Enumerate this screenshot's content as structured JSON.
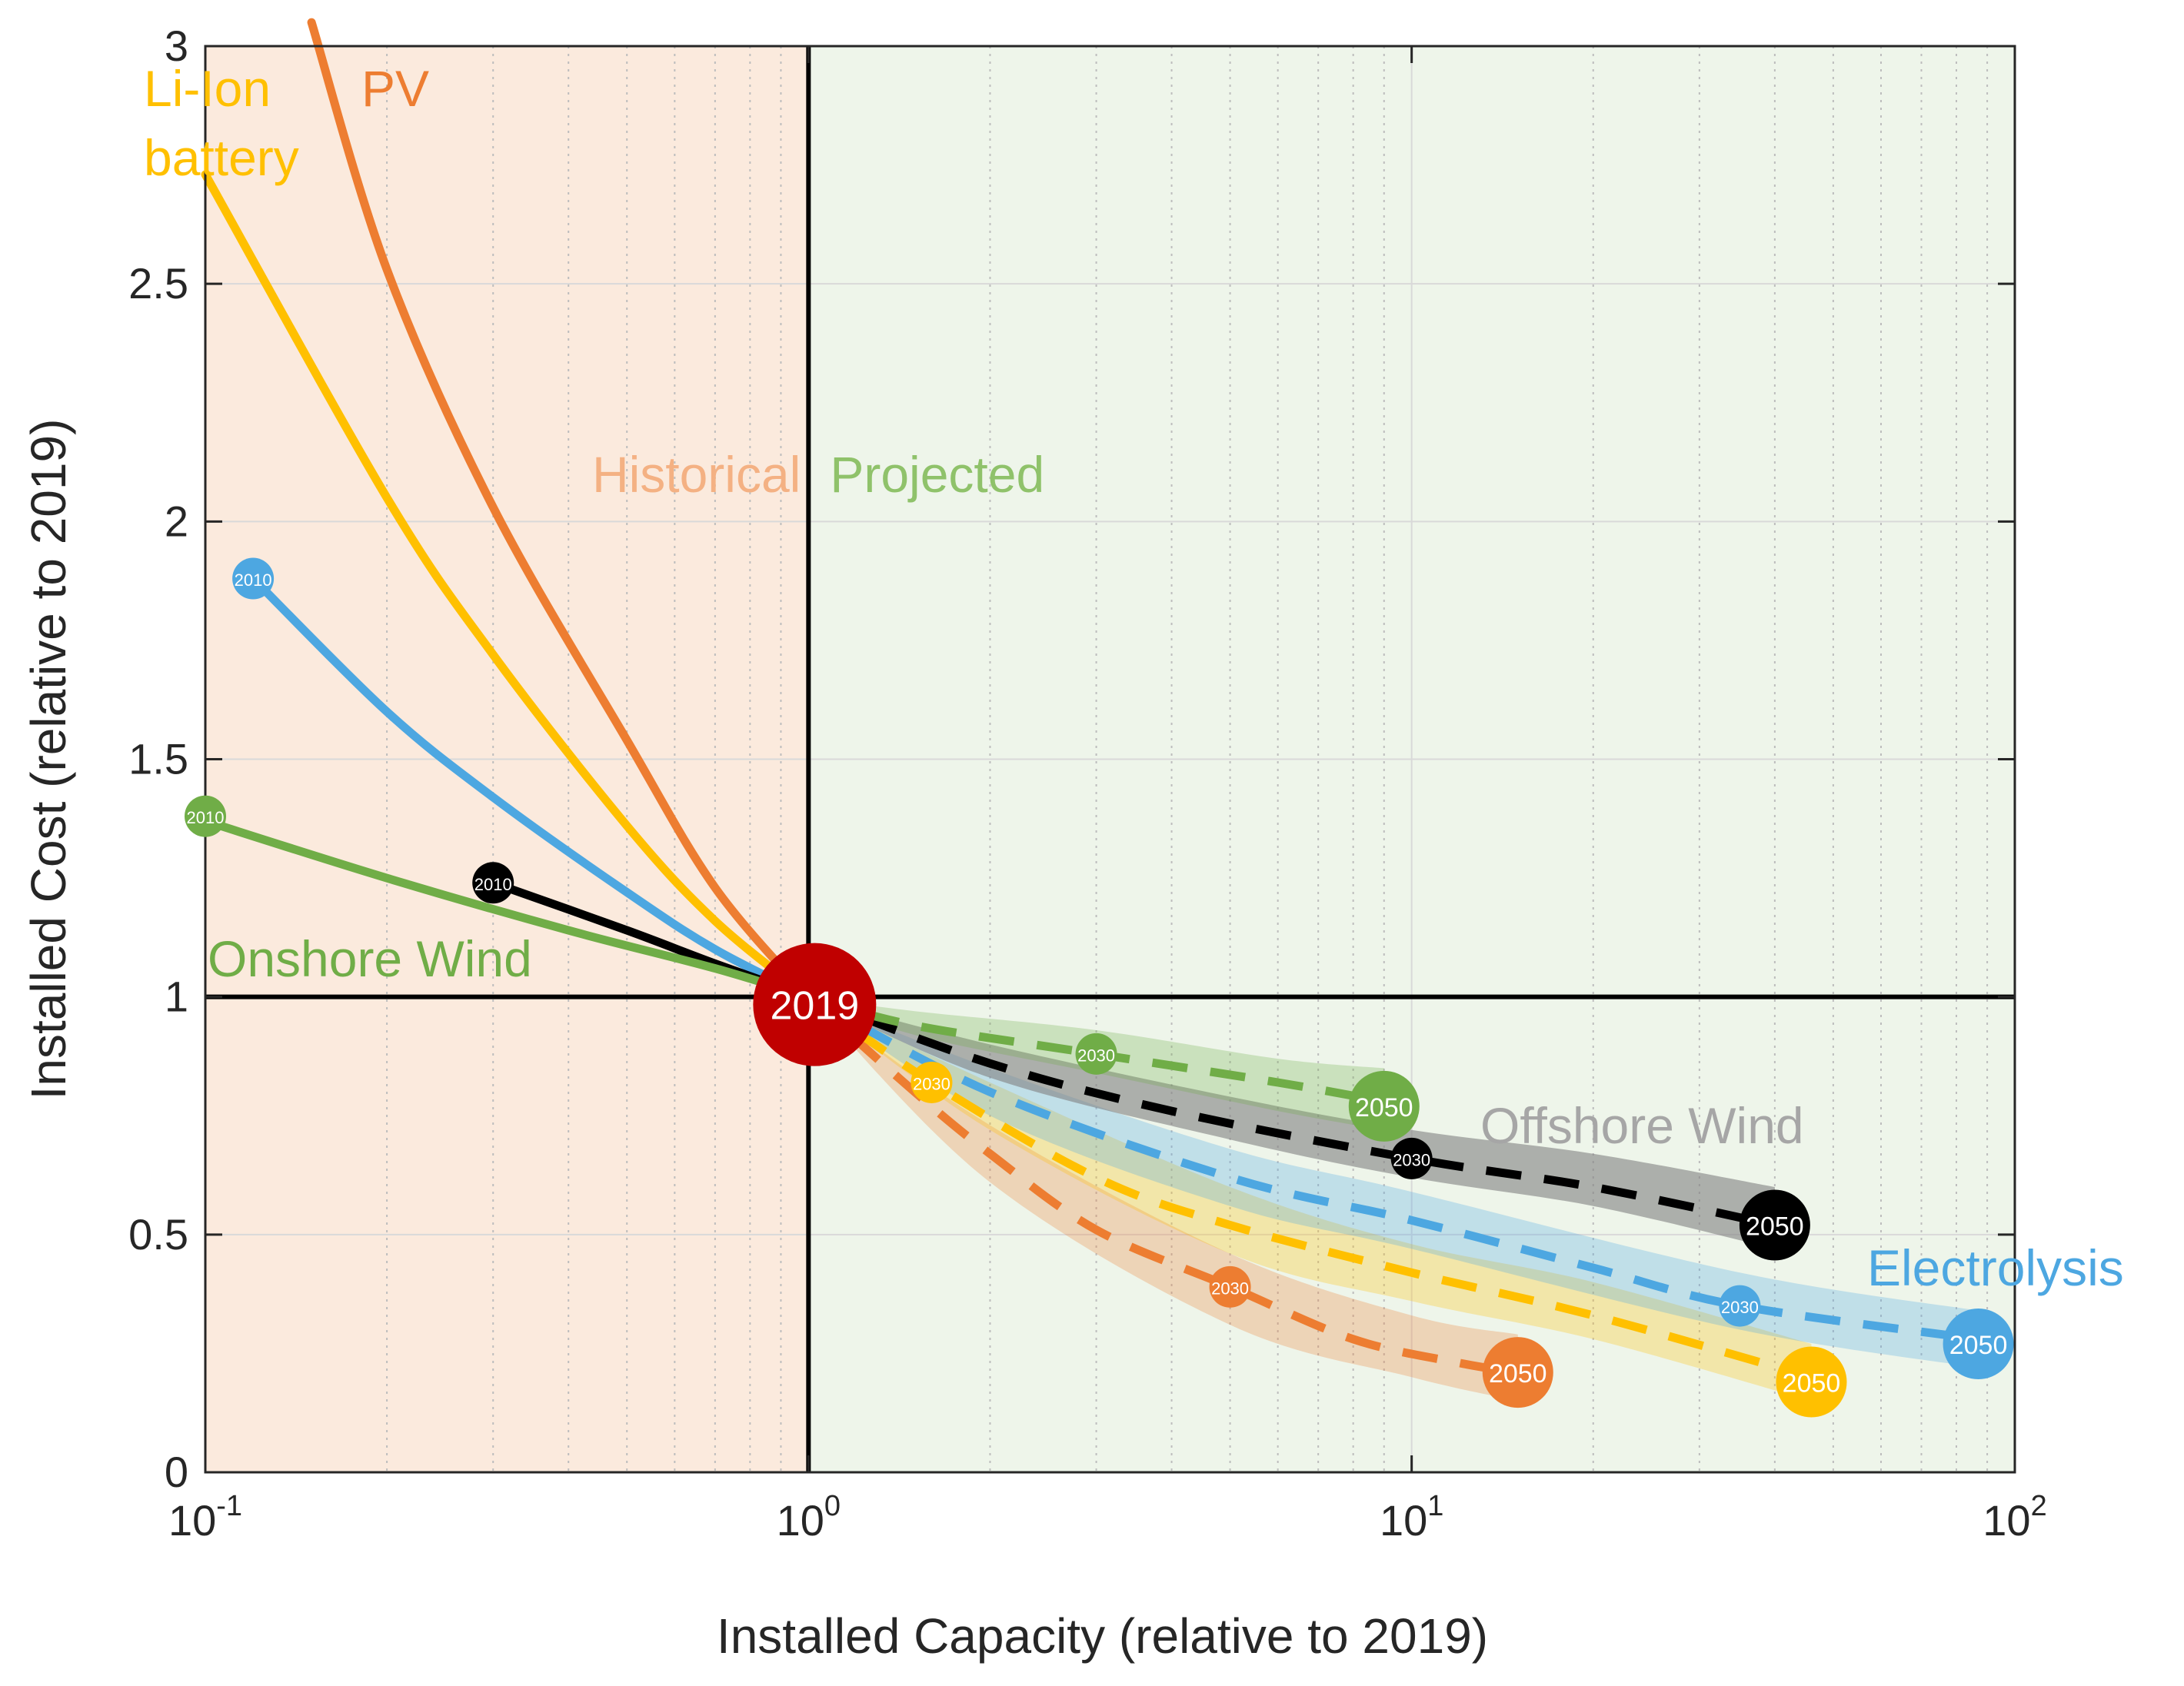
{
  "chart_data": {
    "type": "line",
    "xscale": "log",
    "xlabel": "Installed Capacity (relative to 2019)",
    "ylabel": "Installed Cost (relative to 2019)",
    "xlim": [
      0.1,
      100
    ],
    "ylim": [
      0,
      3
    ],
    "grid": true,
    "x_ticks": [
      {
        "base": "10",
        "exp": "-1",
        "value": 0.1
      },
      {
        "base": "10",
        "exp": "0",
        "value": 1
      },
      {
        "base": "10",
        "exp": "1",
        "value": 10
      },
      {
        "base": "10",
        "exp": "2",
        "value": 100
      }
    ],
    "y_ticks": [
      {
        "label": "0",
        "value": 0
      },
      {
        "label": "0.5",
        "value": 0.5
      },
      {
        "label": "1",
        "value": 1
      },
      {
        "label": "1.5",
        "value": 1.5
      },
      {
        "label": "2",
        "value": 2
      },
      {
        "label": "2.5",
        "value": 2.5
      },
      {
        "label": "3",
        "value": 3
      }
    ],
    "regions": [
      {
        "label": "Historical",
        "x_range": [
          0.1,
          1
        ],
        "color": "#fbeadd",
        "text_color": "#f4b183"
      },
      {
        "label": "Projected",
        "x_range": [
          1,
          100
        ],
        "color": "#eef5ea",
        "text_color": "#8fc26a"
      }
    ],
    "reference": {
      "x": 1,
      "y": 1,
      "label": "2019",
      "color": "#c00000"
    },
    "series": [
      {
        "name": "PV",
        "label": "PV",
        "color": "#ed7d31",
        "label_color": "#ed7d31",
        "historical": [
          [
            0.15,
            3.05
          ],
          [
            0.2,
            2.53
          ],
          [
            0.3,
            2.03
          ],
          [
            0.5,
            1.54
          ],
          [
            0.7,
            1.23
          ],
          [
            1,
            1
          ]
        ],
        "projected": [
          [
            1,
            1
          ],
          [
            1.5,
            0.8
          ],
          [
            2,
            0.67
          ],
          [
            3,
            0.51
          ],
          [
            5,
            0.39
          ],
          [
            8,
            0.28
          ],
          [
            12,
            0.23
          ],
          [
            15,
            0.21
          ]
        ],
        "band": [
          [
            1,
            1,
            1
          ],
          [
            2,
            0.61,
            0.73
          ],
          [
            5,
            0.31,
            0.46
          ],
          [
            10,
            0.2,
            0.33
          ],
          [
            15,
            0.15,
            0.29
          ]
        ],
        "markers": [
          {
            "x": 0.15,
            "y": 3.05,
            "label": "2010",
            "show": false
          },
          {
            "x": 5,
            "y": 0.39,
            "label": "2030",
            "size": "small"
          },
          {
            "x": 15,
            "y": 0.21,
            "label": "2050",
            "size": "large"
          }
        ]
      },
      {
        "name": "Li-Ion battery",
        "label": [
          "Li-Ion",
          "battery"
        ],
        "color": "#ffc000",
        "label_color": "#ffc000",
        "historical": [
          [
            0.1,
            2.73
          ],
          [
            0.2,
            2.05
          ],
          [
            0.3,
            1.72
          ],
          [
            0.5,
            1.36
          ],
          [
            0.7,
            1.16
          ],
          [
            1,
            1
          ]
        ],
        "projected": [
          [
            1,
            1
          ],
          [
            1.6,
            0.82
          ],
          [
            3,
            0.62
          ],
          [
            5,
            0.52
          ],
          [
            10,
            0.42
          ],
          [
            20,
            0.33
          ],
          [
            46,
            0.2
          ]
        ],
        "band": [
          [
            1,
            1,
            1
          ],
          [
            2,
            0.72,
            0.82
          ],
          [
            5,
            0.46,
            0.6
          ],
          [
            10,
            0.36,
            0.48
          ],
          [
            20,
            0.28,
            0.4
          ],
          [
            46,
            0.15,
            0.27
          ]
        ],
        "markers": [
          {
            "x": 1.6,
            "y": 0.82,
            "label": "2030",
            "size": "small"
          },
          {
            "x": 46,
            "y": 0.19,
            "label": "2050",
            "size": "large"
          }
        ]
      },
      {
        "name": "Electrolysis",
        "label": "Electrolysis",
        "color": "#4da7e1",
        "label_color": "#4da7e1",
        "historical": [
          [
            0.12,
            1.88
          ],
          [
            0.2,
            1.6
          ],
          [
            0.3,
            1.42
          ],
          [
            0.5,
            1.22
          ],
          [
            0.7,
            1.1
          ],
          [
            1,
            1
          ]
        ],
        "projected": [
          [
            1,
            1
          ],
          [
            2,
            0.8
          ],
          [
            5,
            0.62
          ],
          [
            10,
            0.53
          ],
          [
            20,
            0.43
          ],
          [
            35,
            0.35
          ],
          [
            87,
            0.28
          ]
        ],
        "band": [
          [
            1,
            1,
            1
          ],
          [
            2,
            0.75,
            0.85
          ],
          [
            5,
            0.56,
            0.68
          ],
          [
            10,
            0.47,
            0.59
          ],
          [
            35,
            0.3,
            0.42
          ],
          [
            87,
            0.22,
            0.34
          ]
        ],
        "markers": [
          {
            "x": 0.12,
            "y": 1.88,
            "label": "2010",
            "size": "small"
          },
          {
            "x": 35,
            "y": 0.35,
            "label": "2030",
            "size": "small"
          },
          {
            "x": 87,
            "y": 0.27,
            "label": "2050",
            "size": "large"
          }
        ]
      },
      {
        "name": "Offshore Wind",
        "label": "Offshore Wind",
        "color": "#000000",
        "label_color": "#a6a6a6",
        "band_color": "#808080",
        "historical": [
          [
            0.3,
            1.24
          ],
          [
            0.5,
            1.14
          ],
          [
            0.7,
            1.07
          ],
          [
            1,
            1
          ]
        ],
        "projected": [
          [
            1,
            1
          ],
          [
            2,
            0.86
          ],
          [
            4,
            0.76
          ],
          [
            10,
            0.66
          ],
          [
            20,
            0.6
          ],
          [
            40,
            0.52
          ]
        ],
        "band": [
          [
            1,
            1,
            1
          ],
          [
            2,
            0.83,
            0.9
          ],
          [
            5,
            0.7,
            0.79
          ],
          [
            10,
            0.62,
            0.72
          ],
          [
            20,
            0.56,
            0.67
          ],
          [
            40,
            0.47,
            0.6
          ]
        ],
        "markers": [
          {
            "x": 0.3,
            "y": 1.24,
            "label": "2010",
            "size": "small"
          },
          {
            "x": 10,
            "y": 0.66,
            "label": "2030",
            "size": "small"
          },
          {
            "x": 40,
            "y": 0.52,
            "label": "2050",
            "size": "large"
          }
        ]
      },
      {
        "name": "Onshore Wind",
        "label": "Onshore Wind",
        "color": "#70ad47",
        "label_color": "#70ad47",
        "historical": [
          [
            0.1,
            1.37
          ],
          [
            0.2,
            1.25
          ],
          [
            0.4,
            1.14
          ],
          [
            0.7,
            1.06
          ],
          [
            1,
            1
          ]
        ],
        "projected": [
          [
            1,
            1
          ],
          [
            1.5,
            0.94
          ],
          [
            3,
            0.88
          ],
          [
            6,
            0.82
          ],
          [
            9,
            0.78
          ]
        ],
        "band": [
          [
            1,
            1,
            1
          ],
          [
            1.5,
            0.92,
            0.97
          ],
          [
            3,
            0.84,
            0.93
          ],
          [
            6,
            0.76,
            0.87
          ],
          [
            9,
            0.72,
            0.85
          ]
        ],
        "markers": [
          {
            "x": 0.1,
            "y": 1.38,
            "label": "2010",
            "size": "small"
          },
          {
            "x": 3,
            "y": 0.88,
            "label": "2030",
            "size": "small"
          },
          {
            "x": 9,
            "y": 0.77,
            "label": "2050",
            "size": "large"
          }
        ]
      }
    ]
  }
}
